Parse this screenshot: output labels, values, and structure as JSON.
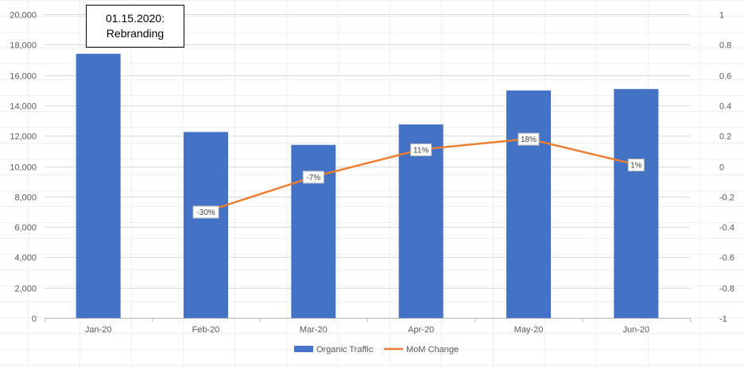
{
  "chart_data": {
    "type": "bar",
    "categories": [
      "Jan-20",
      "Feb-20",
      "Mar-20",
      "Apr-20",
      "May-20",
      "Jun-20"
    ],
    "series": [
      {
        "name": "Organic Traffic",
        "type": "bar",
        "axis": "left",
        "color": "#4472C4",
        "values": [
          17400,
          12250,
          11400,
          12750,
          14980,
          15080
        ]
      },
      {
        "name": "MoM Change",
        "type": "line",
        "axis": "right",
        "color": "#ED7D31",
        "values": [
          null,
          -0.3,
          -0.07,
          0.11,
          0.18,
          0.01
        ],
        "labels": [
          "",
          "-30%",
          "-7%",
          "11%",
          "18%",
          "1%"
        ]
      }
    ],
    "ylim": [
      0,
      20000
    ],
    "y_ticks": [
      "0",
      "2,000",
      "4,000",
      "6,000",
      "8,000",
      "10,000",
      "12,000",
      "14,000",
      "16,000",
      "18,000",
      "20,000"
    ],
    "y2lim": [
      -1,
      1
    ],
    "y2_ticks": [
      "-1",
      "-0.8",
      "-0.6",
      "-0.4",
      "-0.2",
      "0",
      "0.2",
      "0.4",
      "0.6",
      "0.8",
      "1"
    ],
    "grid": true,
    "legend": "bottom",
    "annotation": {
      "line1": "01.15.2020:",
      "line2": "Rebranding"
    }
  }
}
